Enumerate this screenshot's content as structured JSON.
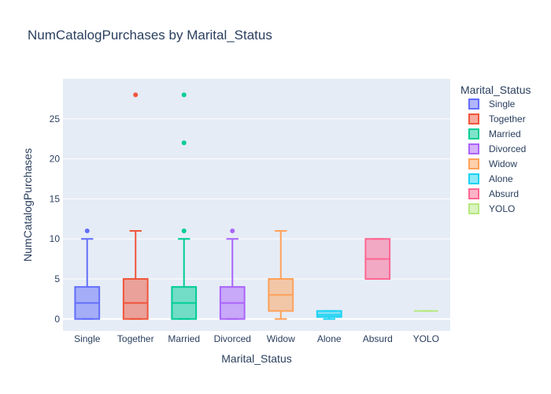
{
  "chart_data": {
    "type": "box",
    "title": "NumCatalogPurchases by Marital_Status",
    "xlabel": "Marital_Status",
    "ylabel": "NumCatalogPurchases",
    "ylim": [
      -1.5,
      30
    ],
    "yticks": [
      0,
      5,
      10,
      15,
      20,
      25
    ],
    "grid": true,
    "legend": {
      "title": "Marital_Status",
      "placement": "right"
    },
    "categories": [
      "Single",
      "Together",
      "Married",
      "Divorced",
      "Widow",
      "Alone",
      "Absurd",
      "YOLO"
    ],
    "series": [
      {
        "name": "Single",
        "color": "#636efa",
        "min": 0,
        "q1": 0,
        "median": 2,
        "q3": 4,
        "max": 10,
        "outliers": [
          11
        ]
      },
      {
        "name": "Together",
        "color": "#EF553B",
        "min": 0,
        "q1": 0,
        "median": 2,
        "q3": 5,
        "max": 11,
        "outliers": [
          28
        ]
      },
      {
        "name": "Married",
        "color": "#00cc96",
        "min": 0,
        "q1": 0,
        "median": 2,
        "q3": 4,
        "max": 10,
        "outliers": [
          11,
          22,
          28
        ]
      },
      {
        "name": "Divorced",
        "color": "#ab63fa",
        "min": 0,
        "q1": 0,
        "median": 2,
        "q3": 4,
        "max": 10,
        "outliers": [
          11
        ]
      },
      {
        "name": "Widow",
        "color": "#FFA15A",
        "min": 0,
        "q1": 1,
        "median": 3,
        "q3": 5,
        "max": 11,
        "outliers": []
      },
      {
        "name": "Alone",
        "color": "#19d3f3",
        "min": 0,
        "q1": 0.25,
        "median": 0.5,
        "q3": 1,
        "max": 1,
        "outliers": []
      },
      {
        "name": "Absurd",
        "color": "#FF6692",
        "min": 5,
        "q1": 5,
        "median": 7.5,
        "q3": 10,
        "max": 10,
        "outliers": []
      },
      {
        "name": "YOLO",
        "color": "#B6E880",
        "min": 1,
        "q1": 1,
        "median": 1,
        "q3": 1,
        "max": 1,
        "outliers": []
      }
    ]
  }
}
